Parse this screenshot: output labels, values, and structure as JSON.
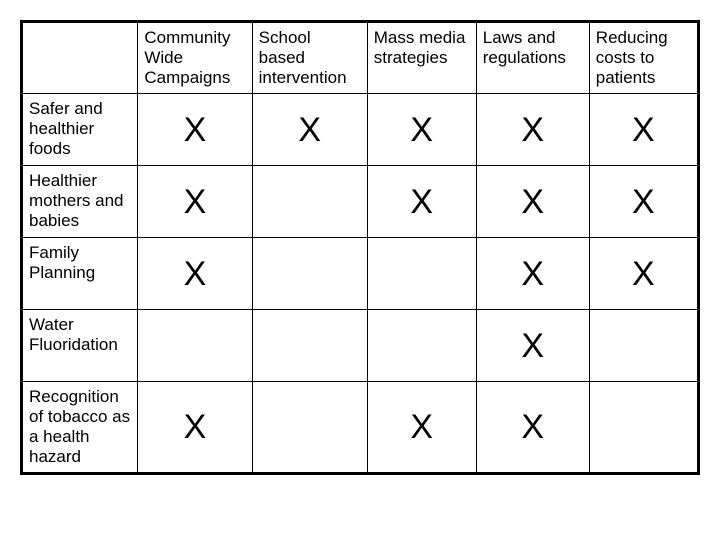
{
  "table": {
    "columns": [
      "Community Wide Campaigns",
      "School based intervention",
      "Mass media strategies",
      "Laws and regulations",
      "Reducing costs to patients"
    ],
    "rows": [
      {
        "label": "Safer and healthier foods",
        "cells": [
          "X",
          "X",
          "X",
          "X",
          "X"
        ]
      },
      {
        "label": "Healthier mothers and babies",
        "cells": [
          "X",
          "",
          "X",
          "X",
          "X"
        ]
      },
      {
        "label": "Family Planning",
        "cells": [
          "X",
          "",
          "",
          "X",
          "X"
        ]
      },
      {
        "label": "Water Fluoridation",
        "cells": [
          "",
          "",
          "",
          "X",
          ""
        ]
      },
      {
        "label": "Recognition of tobacco as a health hazard",
        "cells": [
          "X",
          "",
          "X",
          "X",
          ""
        ]
      }
    ],
    "mark": "X",
    "border_color": "#000000",
    "background_color": "#ffffff",
    "text_color": "#000000",
    "header_fontsize": 17,
    "rowlabel_fontsize": 17,
    "x_fontsize": 34
  }
}
